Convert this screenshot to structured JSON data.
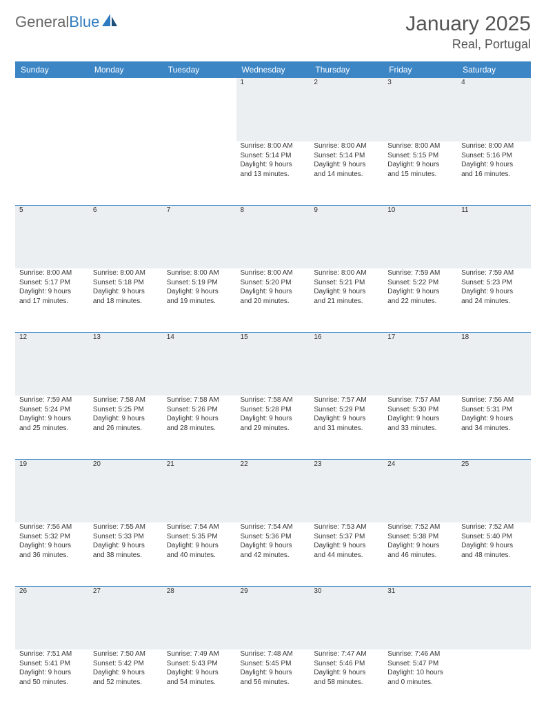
{
  "logo": {
    "word1": "General",
    "word2": "Blue"
  },
  "title": "January 2025",
  "location": "Real, Portugal",
  "colors": {
    "header_bg": "#3d86c6",
    "header_text": "#ffffff",
    "daynum_bg": "#eceff1",
    "daynum_text": "#5a5a5a",
    "body_text": "#333333",
    "rule": "#3d86c6",
    "logo_gray": "#666666",
    "logo_blue": "#2f7bbf"
  },
  "day_headers": [
    "Sunday",
    "Monday",
    "Tuesday",
    "Wednesday",
    "Thursday",
    "Friday",
    "Saturday"
  ],
  "weeks": [
    [
      null,
      null,
      null,
      {
        "n": "1",
        "sr": "Sunrise: 8:00 AM",
        "ss": "Sunset: 5:14 PM",
        "d1": "Daylight: 9 hours",
        "d2": "and 13 minutes."
      },
      {
        "n": "2",
        "sr": "Sunrise: 8:00 AM",
        "ss": "Sunset: 5:14 PM",
        "d1": "Daylight: 9 hours",
        "d2": "and 14 minutes."
      },
      {
        "n": "3",
        "sr": "Sunrise: 8:00 AM",
        "ss": "Sunset: 5:15 PM",
        "d1": "Daylight: 9 hours",
        "d2": "and 15 minutes."
      },
      {
        "n": "4",
        "sr": "Sunrise: 8:00 AM",
        "ss": "Sunset: 5:16 PM",
        "d1": "Daylight: 9 hours",
        "d2": "and 16 minutes."
      }
    ],
    [
      {
        "n": "5",
        "sr": "Sunrise: 8:00 AM",
        "ss": "Sunset: 5:17 PM",
        "d1": "Daylight: 9 hours",
        "d2": "and 17 minutes."
      },
      {
        "n": "6",
        "sr": "Sunrise: 8:00 AM",
        "ss": "Sunset: 5:18 PM",
        "d1": "Daylight: 9 hours",
        "d2": "and 18 minutes."
      },
      {
        "n": "7",
        "sr": "Sunrise: 8:00 AM",
        "ss": "Sunset: 5:19 PM",
        "d1": "Daylight: 9 hours",
        "d2": "and 19 minutes."
      },
      {
        "n": "8",
        "sr": "Sunrise: 8:00 AM",
        "ss": "Sunset: 5:20 PM",
        "d1": "Daylight: 9 hours",
        "d2": "and 20 minutes."
      },
      {
        "n": "9",
        "sr": "Sunrise: 8:00 AM",
        "ss": "Sunset: 5:21 PM",
        "d1": "Daylight: 9 hours",
        "d2": "and 21 minutes."
      },
      {
        "n": "10",
        "sr": "Sunrise: 7:59 AM",
        "ss": "Sunset: 5:22 PM",
        "d1": "Daylight: 9 hours",
        "d2": "and 22 minutes."
      },
      {
        "n": "11",
        "sr": "Sunrise: 7:59 AM",
        "ss": "Sunset: 5:23 PM",
        "d1": "Daylight: 9 hours",
        "d2": "and 24 minutes."
      }
    ],
    [
      {
        "n": "12",
        "sr": "Sunrise: 7:59 AM",
        "ss": "Sunset: 5:24 PM",
        "d1": "Daylight: 9 hours",
        "d2": "and 25 minutes."
      },
      {
        "n": "13",
        "sr": "Sunrise: 7:58 AM",
        "ss": "Sunset: 5:25 PM",
        "d1": "Daylight: 9 hours",
        "d2": "and 26 minutes."
      },
      {
        "n": "14",
        "sr": "Sunrise: 7:58 AM",
        "ss": "Sunset: 5:26 PM",
        "d1": "Daylight: 9 hours",
        "d2": "and 28 minutes."
      },
      {
        "n": "15",
        "sr": "Sunrise: 7:58 AM",
        "ss": "Sunset: 5:28 PM",
        "d1": "Daylight: 9 hours",
        "d2": "and 29 minutes."
      },
      {
        "n": "16",
        "sr": "Sunrise: 7:57 AM",
        "ss": "Sunset: 5:29 PM",
        "d1": "Daylight: 9 hours",
        "d2": "and 31 minutes."
      },
      {
        "n": "17",
        "sr": "Sunrise: 7:57 AM",
        "ss": "Sunset: 5:30 PM",
        "d1": "Daylight: 9 hours",
        "d2": "and 33 minutes."
      },
      {
        "n": "18",
        "sr": "Sunrise: 7:56 AM",
        "ss": "Sunset: 5:31 PM",
        "d1": "Daylight: 9 hours",
        "d2": "and 34 minutes."
      }
    ],
    [
      {
        "n": "19",
        "sr": "Sunrise: 7:56 AM",
        "ss": "Sunset: 5:32 PM",
        "d1": "Daylight: 9 hours",
        "d2": "and 36 minutes."
      },
      {
        "n": "20",
        "sr": "Sunrise: 7:55 AM",
        "ss": "Sunset: 5:33 PM",
        "d1": "Daylight: 9 hours",
        "d2": "and 38 minutes."
      },
      {
        "n": "21",
        "sr": "Sunrise: 7:54 AM",
        "ss": "Sunset: 5:35 PM",
        "d1": "Daylight: 9 hours",
        "d2": "and 40 minutes."
      },
      {
        "n": "22",
        "sr": "Sunrise: 7:54 AM",
        "ss": "Sunset: 5:36 PM",
        "d1": "Daylight: 9 hours",
        "d2": "and 42 minutes."
      },
      {
        "n": "23",
        "sr": "Sunrise: 7:53 AM",
        "ss": "Sunset: 5:37 PM",
        "d1": "Daylight: 9 hours",
        "d2": "and 44 minutes."
      },
      {
        "n": "24",
        "sr": "Sunrise: 7:52 AM",
        "ss": "Sunset: 5:38 PM",
        "d1": "Daylight: 9 hours",
        "d2": "and 46 minutes."
      },
      {
        "n": "25",
        "sr": "Sunrise: 7:52 AM",
        "ss": "Sunset: 5:40 PM",
        "d1": "Daylight: 9 hours",
        "d2": "and 48 minutes."
      }
    ],
    [
      {
        "n": "26",
        "sr": "Sunrise: 7:51 AM",
        "ss": "Sunset: 5:41 PM",
        "d1": "Daylight: 9 hours",
        "d2": "and 50 minutes."
      },
      {
        "n": "27",
        "sr": "Sunrise: 7:50 AM",
        "ss": "Sunset: 5:42 PM",
        "d1": "Daylight: 9 hours",
        "d2": "and 52 minutes."
      },
      {
        "n": "28",
        "sr": "Sunrise: 7:49 AM",
        "ss": "Sunset: 5:43 PM",
        "d1": "Daylight: 9 hours",
        "d2": "and 54 minutes."
      },
      {
        "n": "29",
        "sr": "Sunrise: 7:48 AM",
        "ss": "Sunset: 5:45 PM",
        "d1": "Daylight: 9 hours",
        "d2": "and 56 minutes."
      },
      {
        "n": "30",
        "sr": "Sunrise: 7:47 AM",
        "ss": "Sunset: 5:46 PM",
        "d1": "Daylight: 9 hours",
        "d2": "and 58 minutes."
      },
      {
        "n": "31",
        "sr": "Sunrise: 7:46 AM",
        "ss": "Sunset: 5:47 PM",
        "d1": "Daylight: 10 hours",
        "d2": "and 0 minutes."
      },
      null
    ]
  ]
}
